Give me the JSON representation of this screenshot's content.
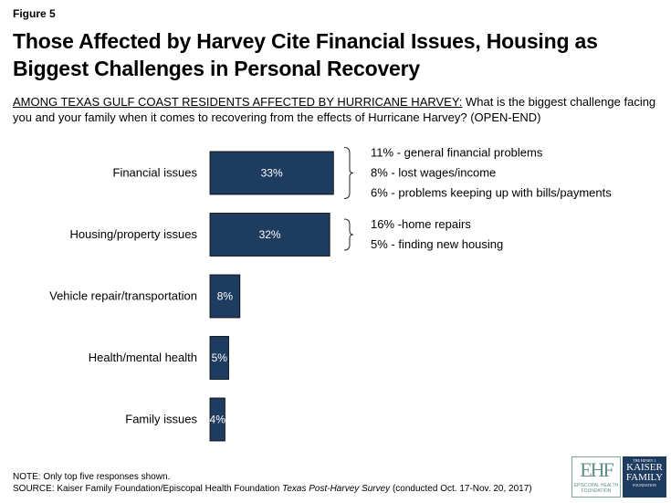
{
  "figure_label": "Figure 5",
  "title": "Those Affected by Harvey Cite Financial Issues, Housing as Biggest Challenges in Personal Recovery",
  "question": {
    "lead": "AMONG TEXAS GULF COAST RESIDENTS AFFECTED BY HURRICANE HARVEY:",
    "text": " What is the biggest challenge facing you and your family when it comes to recovering from the effects of Hurricane Harvey? (OPEN-END)"
  },
  "chart_data": {
    "type": "bar",
    "orientation": "horizontal",
    "title": "",
    "xlabel": "",
    "ylabel": "",
    "categories": [
      "Financial issues",
      "Housing/property issues",
      "Vehicle repair/transportation",
      "Health/mental health",
      "Family issues"
    ],
    "values": [
      33,
      32,
      8,
      5,
      4
    ],
    "value_labels": [
      "33%",
      "32%",
      "8%",
      "5%",
      "4%"
    ],
    "color": "#1e3b60",
    "breakdowns": [
      {
        "category": "Financial issues",
        "items": [
          "11% - general financial problems",
          "8% - lost wages/income",
          "6% - problems keeping up with bills/payments"
        ]
      },
      {
        "category": "Housing/property issues",
        "items": [
          "16% -home repairs",
          "5% - finding new housing"
        ]
      }
    ]
  },
  "notes": {
    "note": "NOTE: Only top five responses shown.",
    "source_prefix": "SOURCE: Kaiser Family Foundation/Episcopal Health Foundation ",
    "source_title": "Texas Post-Harvey Survey",
    "source_suffix": " (conducted Oct. 17-Nov. 20, 2017)"
  },
  "logos": {
    "ehf_mark": "EHF",
    "ehf_text_1": "EPISCOPAL HEALTH",
    "ehf_text_2": "FOUNDATION",
    "kff_top": "THE HENRY J.",
    "kff_line1": "KAISER",
    "kff_line2": "FAMILY",
    "kff_bottom": "FOUNDATION"
  }
}
